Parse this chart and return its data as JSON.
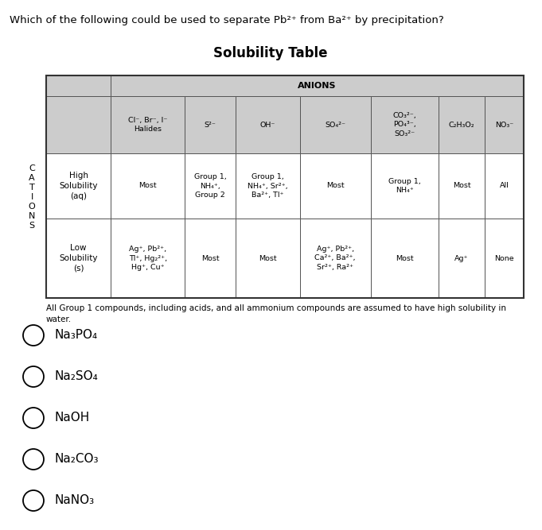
{
  "table_title": "Solubility Table",
  "anions_label": "ANIONS",
  "col_headers": [
    "Cl⁻, Br⁻, I⁻\nHalides",
    "S²⁻",
    "OH⁻",
    "SO₄²⁻",
    "CO₃²⁻,\nPO₄³⁻,\nSO₃²⁻",
    "C₂H₃O₂",
    "NO₃⁻"
  ],
  "row1_label": "High\nSolubility\n(aq)",
  "row2_label": "Low\nSolubility\n(s)",
  "row1_data": [
    "Most",
    "Group 1,\nNH₄⁺,\nGroup 2",
    "Group 1,\nNH₄⁺, Sr²⁺,\nBa²⁺, Tl⁺",
    "Most",
    "Group 1,\nNH₄⁺",
    "Most",
    "All"
  ],
  "row2_data": [
    "Ag⁺, Pb²⁺,\nTl⁺, Hg₂²⁺,\nHg⁺, Cu⁺",
    "Most",
    "Most",
    "Ag⁺, Pb²⁺,\nCa²⁺, Ba²⁺,\nSr²⁺, Ra²⁺",
    "Most",
    "Ag⁺",
    "None"
  ],
  "footnote": "All Group 1 compounds, including acids, and all ammonium compounds are assumed to have high solubility in\nwater.",
  "choices": [
    "Na₃PO₄",
    "Na₂SO₄",
    "NaOH",
    "Na₂CO₃",
    "NaNO₃"
  ],
  "bg_color": "#ffffff",
  "header_bg": "#cccccc",
  "cell_bg_white": "#ffffff",
  "text_color": "#000000",
  "fontsize_question": 9.5,
  "fontsize_title": 12,
  "fontsize_table": 6.8,
  "fontsize_choices": 11,
  "fontsize_cations": 8,
  "fontsize_footnote": 7.5
}
